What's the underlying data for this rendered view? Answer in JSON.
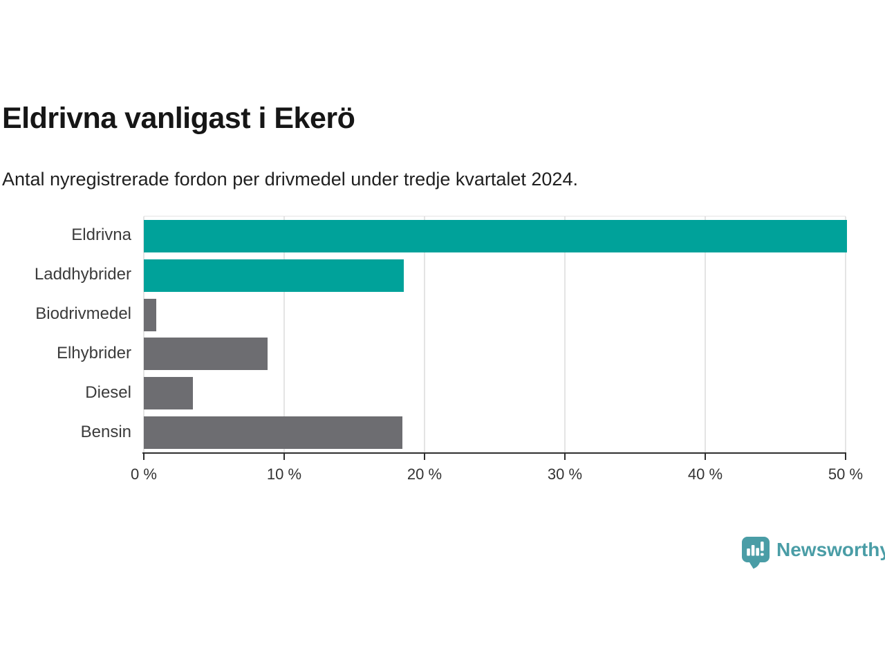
{
  "header": {
    "title": "Eldrivna vanligast i Ekerö",
    "subtitle": "Antal nyregistrerade fordon per drivmedel under tredje kvartalet 2024."
  },
  "chart_data": {
    "type": "bar",
    "orientation": "horizontal",
    "title": "Eldrivna vanligast i Ekerö",
    "subtitle": "Antal nyregistrerade fordon per drivmedel under tredje kvartalet 2024.",
    "categories": [
      "Eldrivna",
      "Laddhybrider",
      "Biodrivmedel",
      "Elhybrider",
      "Diesel",
      "Bensin"
    ],
    "values": [
      50.1,
      18.5,
      0.9,
      8.8,
      3.5,
      18.4
    ],
    "unit": "%",
    "bar_colors": [
      "#00a29a",
      "#00a29a",
      "#6d6d71",
      "#6d6d71",
      "#6d6d71",
      "#6d6d71"
    ],
    "xlim": [
      0,
      50
    ],
    "x_ticks": [
      {
        "value": 0,
        "label": "0 %"
      },
      {
        "value": 10,
        "label": "10 %"
      },
      {
        "value": 20,
        "label": "20 %"
      },
      {
        "value": 30,
        "label": "30 %"
      },
      {
        "value": 40,
        "label": "40 %"
      },
      {
        "value": 50,
        "label": "50 %"
      }
    ],
    "xlabel": "",
    "ylabel": "",
    "grid": "vertical",
    "legend": "none",
    "accent_color": "#00a29a",
    "muted_color": "#6d6d71",
    "gridline_color": "#e4e4e4",
    "axis_color": "#2e2e2e"
  },
  "footer": {
    "brand": "Newsworthy",
    "brand_color": "#4a9da6",
    "brand_icon": "bar-chart-speech-bubble-icon"
  }
}
